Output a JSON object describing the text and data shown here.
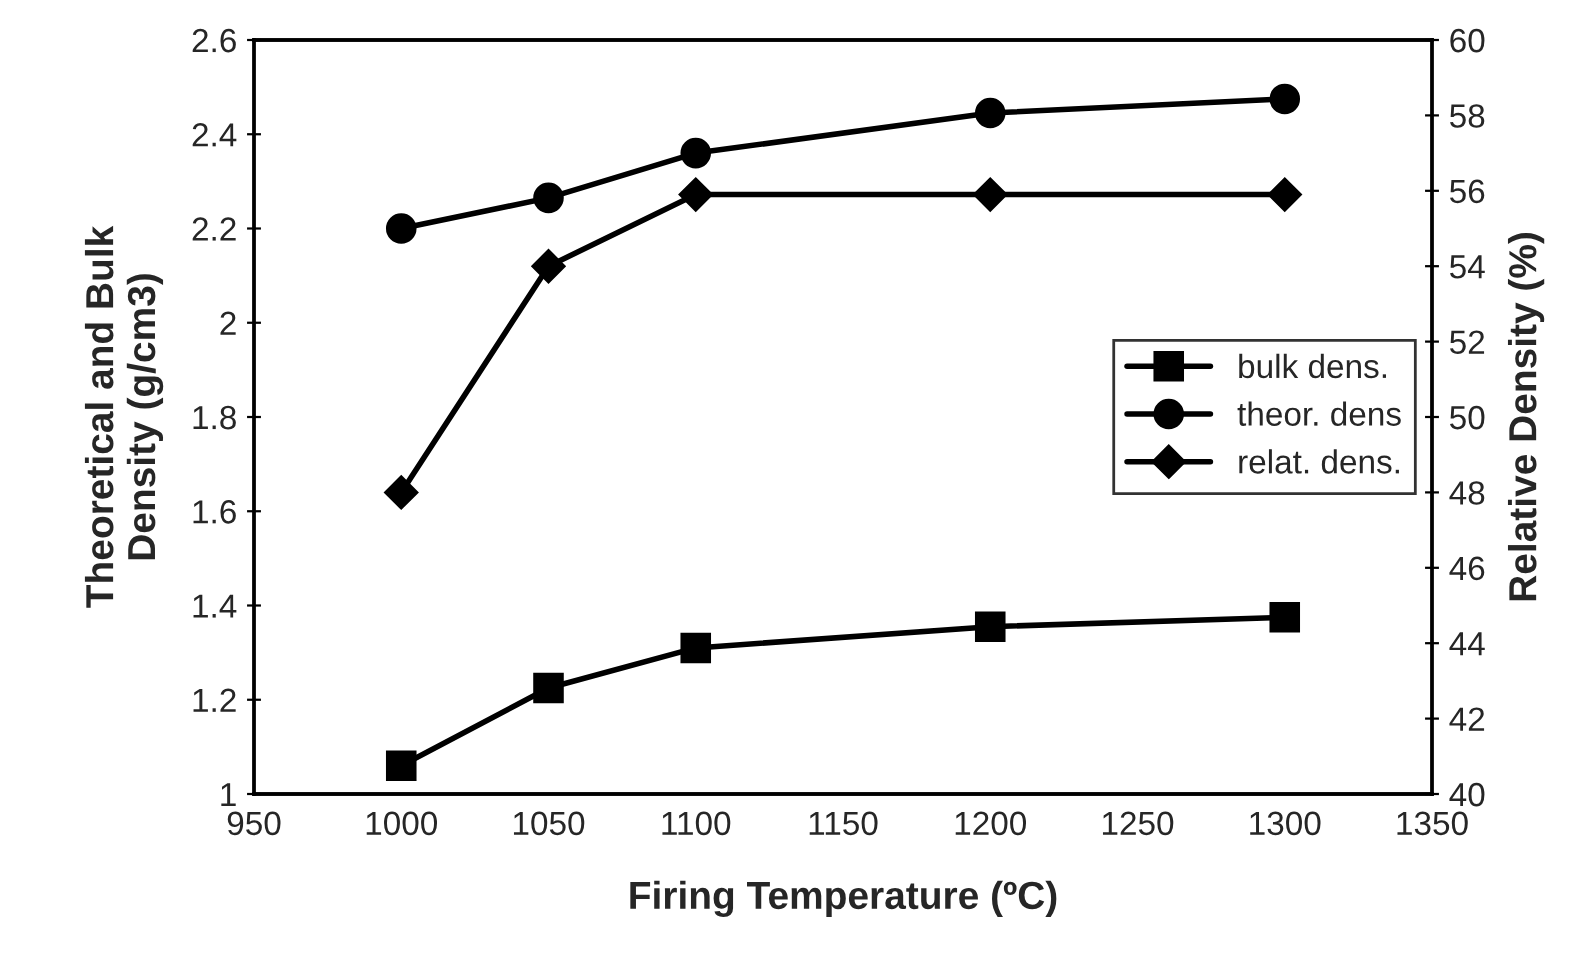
{
  "chart_data": {
    "type": "line",
    "xlabel": "Firing Temperature (ºC)",
    "ylabel": "Theoretical and Bulk\nDensity (g/cm3)",
    "y2label": "Relative Density (%)",
    "x": [
      1000,
      1050,
      1100,
      1200,
      1300
    ],
    "series": [
      {
        "name": "bulk dens.",
        "color": "#000000",
        "marker": "square",
        "values": [
          1.06,
          1.225,
          1.31,
          1.355,
          1.375
        ]
      },
      {
        "name": "theor. dens",
        "color": "#000000",
        "marker": "circle",
        "values": [
          2.2,
          2.265,
          2.36,
          2.445,
          2.475
        ]
      },
      {
        "name": "relat. dens.",
        "color": "#000000",
        "marker": "diamond",
        "axis": "y2",
        "values": [
          48.0,
          54.0,
          55.9,
          55.9,
          55.9
        ]
      }
    ],
    "xlim": [
      950,
      1350
    ],
    "xticks": [
      950,
      1000,
      1050,
      1100,
      1150,
      1200,
      1250,
      1300,
      1350
    ],
    "ylim": [
      1,
      2.6
    ],
    "yticks": [
      1,
      1.2,
      1.4,
      1.6,
      1.8,
      2,
      2.2,
      2.4,
      2.6
    ],
    "y2lim": [
      40,
      60
    ],
    "y2ticks": [
      40,
      42,
      44,
      46,
      48,
      50,
      52,
      54,
      56,
      58,
      60
    ],
    "grid": false,
    "legend": "center right",
    "line_style": "solid"
  }
}
